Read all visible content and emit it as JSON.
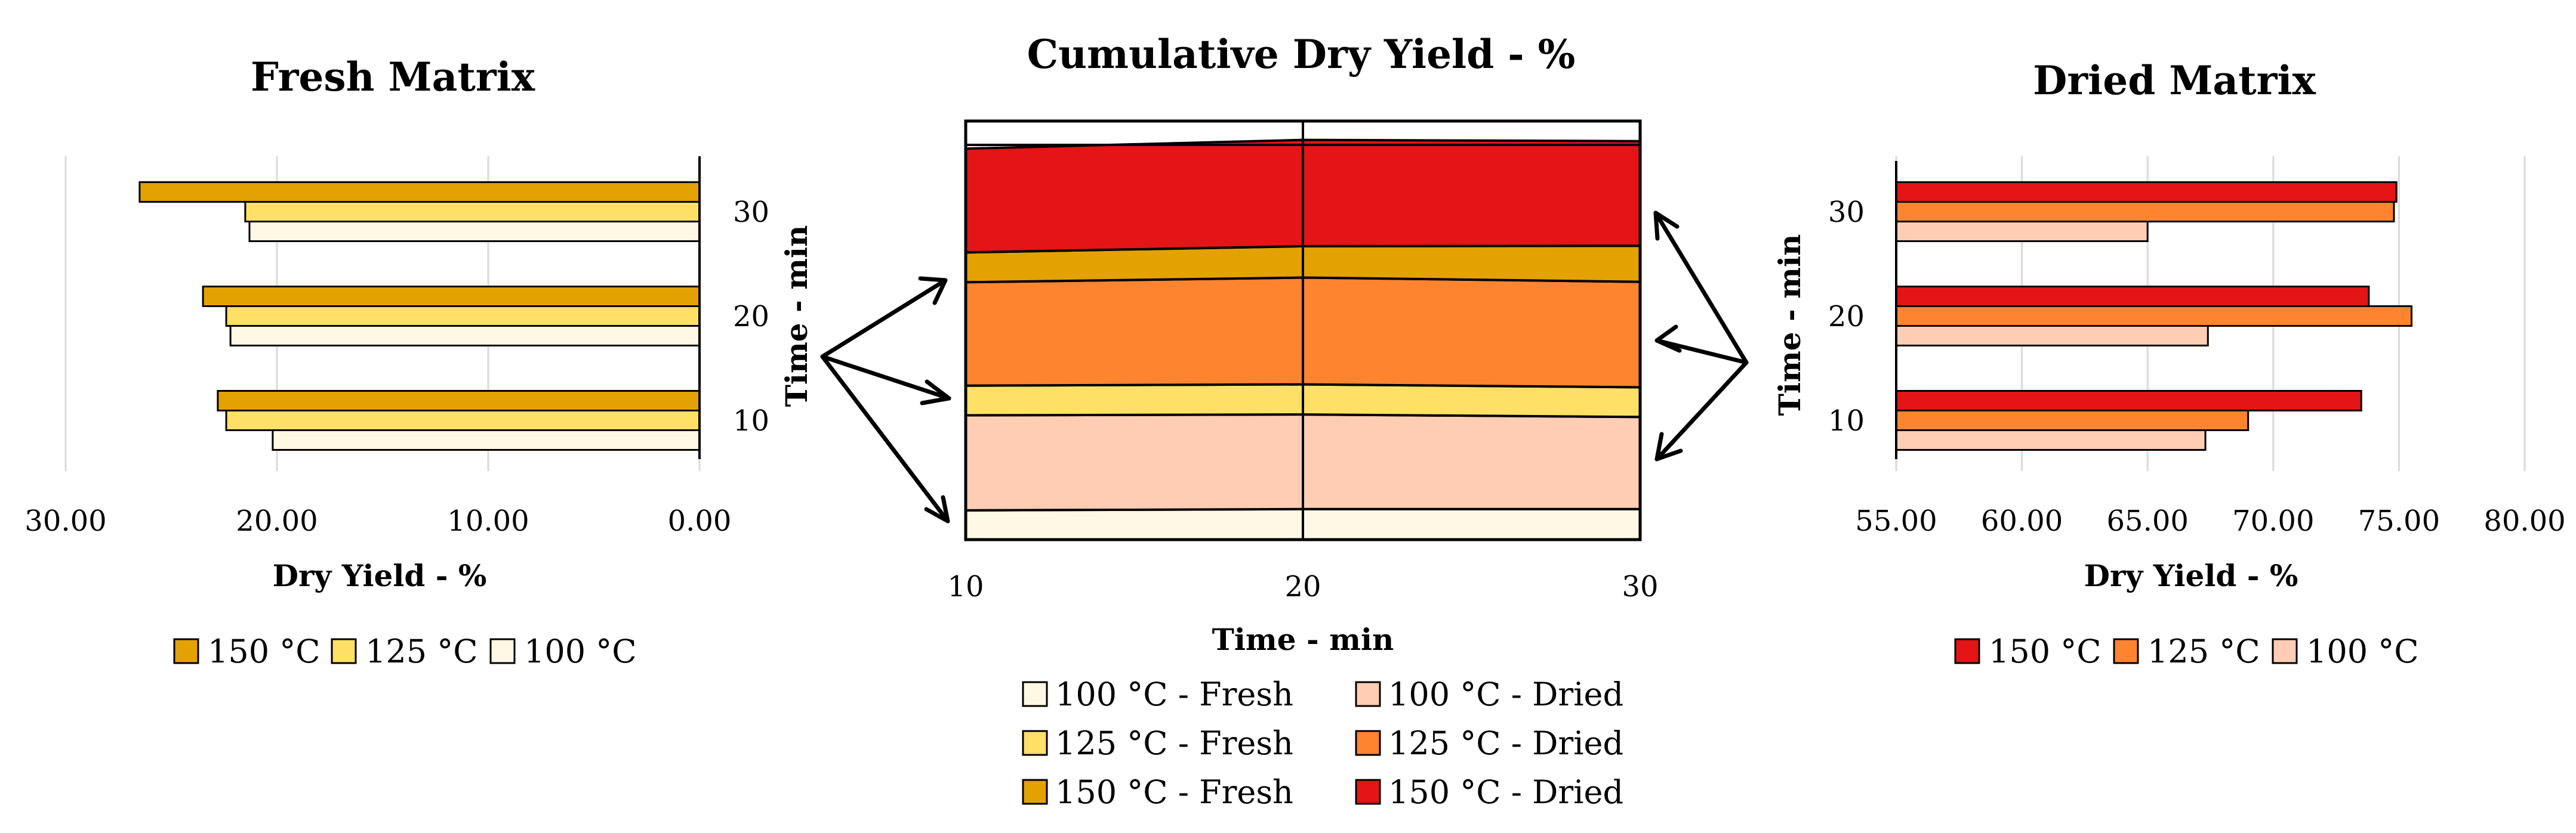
{
  "colors": {
    "fresh_150": "#E3A201",
    "fresh_125": "#FFE066",
    "fresh_100": "#FFF8E4",
    "dried_150": "#E31516",
    "dried_125": "#FF8430",
    "dried_100": "#FFCDB3",
    "grid": "#D9D9D9",
    "arrow": "#000000"
  },
  "chart_data": [
    {
      "id": "fresh",
      "type": "bar",
      "orientation": "horizontal",
      "x_reversed": true,
      "title": "Fresh Matrix",
      "xlabel": "Dry Yield - %",
      "ylabel": "Time - min",
      "categories": [
        "10",
        "20",
        "30"
      ],
      "xlim": [
        0,
        30
      ],
      "xticks": [
        "30.00",
        "20.00",
        "10.00",
        "0.00"
      ],
      "xtick_values": [
        30,
        20,
        10,
        0
      ],
      "series": [
        {
          "name": "150 °C",
          "color_key": "fresh_150",
          "values": [
            22.8,
            23.5,
            26.5
          ]
        },
        {
          "name": "125 °C",
          "color_key": "fresh_125",
          "values": [
            22.4,
            22.4,
            21.5
          ]
        },
        {
          "name": "100 °C",
          "color_key": "fresh_100",
          "values": [
            20.2,
            22.2,
            21.3
          ]
        }
      ],
      "legend": [
        "150 °C",
        "125 °C",
        "100 °C"
      ]
    },
    {
      "id": "cumulative",
      "type": "area",
      "stacked": true,
      "title": "Cumulative Dry Yield - %",
      "xlabel": "Time - min",
      "x": [
        10,
        20,
        30
      ],
      "xticks": [
        "10",
        "20",
        "30"
      ],
      "ylim": [
        0,
        100
      ],
      "series": [
        {
          "name": "100 °C - Fresh",
          "color_key": "fresh_100",
          "values": [
            7.0,
            7.3,
            7.3
          ]
        },
        {
          "name": "100 °C - Dried",
          "color_key": "dried_100",
          "values": [
            22.7,
            22.6,
            22.0
          ]
        },
        {
          "name": "125 °C - Fresh",
          "color_key": "fresh_125",
          "values": [
            7.1,
            7.2,
            7.1
          ]
        },
        {
          "name": "125 °C - Dried",
          "color_key": "dried_125",
          "values": [
            24.7,
            25.5,
            25.2
          ]
        },
        {
          "name": "150 °C - Fresh",
          "color_key": "fresh_150",
          "values": [
            7.1,
            7.5,
            8.6
          ]
        },
        {
          "name": "150 °C - Dried",
          "color_key": "dried_150",
          "values": [
            24.8,
            25.4,
            25.0
          ]
        }
      ],
      "legend_columns": [
        [
          "100 °C - Fresh",
          "125 °C - Fresh",
          "150 °C - Fresh"
        ],
        [
          "100 °C - Dried",
          "125 °C - Dried",
          "150 °C - Dried"
        ]
      ]
    },
    {
      "id": "dried",
      "type": "bar",
      "orientation": "horizontal",
      "title": "Dried Matrix",
      "xlabel": "Dry Yield - %",
      "ylabel": "Time - min",
      "categories": [
        "10",
        "20",
        "30"
      ],
      "xlim": [
        55,
        80
      ],
      "xticks": [
        "55.00",
        "60.00",
        "65.00",
        "70.00",
        "75.00",
        "80.00"
      ],
      "xtick_values": [
        55,
        60,
        65,
        70,
        75,
        80
      ],
      "series": [
        {
          "name": "150 °C",
          "color_key": "dried_150",
          "values": [
            73.5,
            73.8,
            74.9
          ]
        },
        {
          "name": "125 °C",
          "color_key": "dried_125",
          "values": [
            69.0,
            75.5,
            74.8
          ]
        },
        {
          "name": "100 °C",
          "color_key": "dried_100",
          "values": [
            67.3,
            67.4,
            65.0
          ]
        }
      ],
      "legend": [
        "150 °C",
        "125 °C",
        "100 °C"
      ]
    }
  ]
}
